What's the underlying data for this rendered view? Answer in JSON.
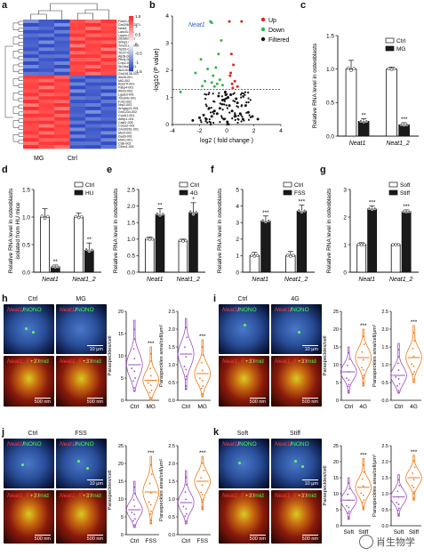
{
  "labels": {
    "a": "a",
    "b": "b",
    "c": "c",
    "d": "d",
    "e": "e",
    "f": "f",
    "g": "g",
    "h": "h",
    "i": "i",
    "j": "j",
    "k": "k"
  },
  "heatmap": {
    "colorbar_ticks": [
      "1.5",
      "1",
      "0.5",
      "0",
      "-0.5",
      "-1",
      "-1.5"
    ],
    "groups": [
      "MG",
      "Ctrl"
    ],
    "genes": [
      "Fukn1-005",
      "Gm20661-2271",
      "Neat1",
      "Lancl3-006",
      "Lrpprc-001",
      "Zfp36l2-001",
      "Snhg1-001",
      "Tmem194-002",
      "Trp53-006",
      "Ttc27-003",
      "Atp5j-006",
      "Ptms-001",
      "Crip2-001",
      "Slc16a3-001",
      "Ak3-001",
      "Gm16136-001",
      "Itm2b-001",
      "Mt2-002",
      "Rps27l-001",
      "Fabp4-001",
      "Ifitm3-003",
      "Lgals3-001",
      "Tmsb4x-001",
      "Fzd1-002",
      "Nrp2-003",
      "Arhgap21-001",
      "Gm1234-002",
      "Cox4i1-001",
      "Aebp1-001",
      "Cald1-005",
      "Col1a2-001",
      "Gm30261-001",
      "Mest-002",
      "Gas6-001",
      "Mdh1-001",
      "Ctsk-002",
      "Cthrc1-001"
    ]
  },
  "volcano": {
    "annotation": "Neat1",
    "legend": [
      "Up",
      "Down",
      "Filtered"
    ],
    "colors": {
      "up": "#e0251e",
      "down": "#2cb84a",
      "filtered": "#111111"
    }
  },
  "colors": {
    "ctrl_bar": "#ffffff",
    "treat_bar": "#1a1a1a",
    "violin_purple": "#9b4fc0",
    "violin_orange": "#f07a17"
  },
  "micrographs": {
    "h": {
      "left": "Ctrl",
      "right": "MG"
    },
    "i": {
      "left": "Ctrl",
      "right": "4G"
    },
    "j": {
      "left": "Ctrl",
      "right": "FSS"
    },
    "k": {
      "left": "Soft",
      "right": "Stiff"
    },
    "top_label_red": "Neat1",
    "top_label_green": "NONO",
    "bottom_label_red": "Neat1_5'",
    "bottom_label_yellow": "+3'",
    "bottom_label_green": "mid",
    "scale_top": "10 μm",
    "scale_bottom": "500 nm"
  },
  "watermark": "肖生物学",
  "chart_data": [
    {
      "panel": "a",
      "type": "heatmap",
      "x": [
        "MG",
        "MG",
        "MG",
        "Ctrl",
        "Ctrl",
        "Ctrl"
      ],
      "y_ticks": [
        "Fukn1-005",
        "Gm20661-2271",
        "Neat1",
        "Lancl3-006",
        "Lrpprc-001",
        "Zfp36l2-001",
        "Snhg1-001",
        "Tmem194-002",
        "Trp53-006",
        "Ttc27-003",
        "Atp5j-006",
        "Ptms-001",
        "Crip2-001",
        "Slc16a3-001",
        "Ak3-001",
        "Gm16136-001",
        "Itm2b-001",
        "Mt2-002",
        "Rps27l-001",
        "Fabp4-001",
        "Ifitm3-003",
        "Lgals3-001",
        "Tmsb4x-001",
        "Fzd1-002",
        "Nrp2-003",
        "Arhgap21-001",
        "Gm1234-002",
        "Cox4i1-001",
        "Aebp1-001",
        "Cald1-005",
        "Col1a2-001",
        "Gm30261-001",
        "Mest-002",
        "Gas6-001",
        "Mdh1-001",
        "Ctsk-002",
        "Cthrc1-001"
      ],
      "colorbar": [
        -1.5,
        1.5
      ]
    },
    {
      "panel": "b",
      "type": "scatter",
      "xlabel": "log2 ( fold change )",
      "ylabel": "-log10 (P value)",
      "xlim": [
        -4,
        4
      ],
      "ylim": [
        0,
        4
      ],
      "x_ticks": [
        -4,
        -2,
        0,
        2,
        4
      ],
      "y_ticks": [
        0,
        1,
        2,
        3,
        4
      ],
      "threshold_y": 1.3,
      "series": [
        {
          "name": "Up",
          "points": [
            [
              0.2,
              3.8
            ],
            [
              1.1,
              3.8
            ],
            [
              0.5,
              2.2
            ],
            [
              0.3,
              1.9
            ],
            [
              0.6,
              1.6
            ],
            [
              0.4,
              1.5
            ],
            [
              0.8,
              1.4
            ],
            [
              0.25,
              1.8
            ],
            [
              0.35,
              2.6
            ],
            [
              0.45,
              1.35
            ]
          ]
        },
        {
          "name": "Down",
          "points": [
            [
              -1.2,
              3.8
            ],
            [
              -1.1,
              3.75
            ],
            [
              -0.4,
              3.1
            ],
            [
              -1.9,
              2.4
            ],
            [
              -2.3,
              1.9
            ],
            [
              -1.4,
              2.05
            ],
            [
              -0.8,
              2.1
            ],
            [
              -1.0,
              1.8
            ],
            [
              -0.6,
              2.6
            ],
            [
              -0.7,
              1.5
            ],
            [
              -1.1,
              1.55
            ],
            [
              -0.5,
              1.65
            ],
            [
              -1.6,
              1.6
            ],
            [
              -0.9,
              1.4
            ],
            [
              -0.3,
              1.45
            ],
            [
              -1.8,
              1.42
            ],
            [
              -3.4,
              1.2
            ]
          ]
        },
        {
          "name": "Filtered",
          "points": [
            [
              -0.1,
              1.2
            ],
            [
              0.1,
              1.0
            ],
            [
              -0.3,
              0.9
            ],
            [
              0.2,
              0.7
            ],
            [
              -0.5,
              0.6
            ],
            [
              0.4,
              0.5
            ],
            [
              -0.7,
              0.4
            ],
            [
              0.6,
              0.3
            ],
            [
              -0.2,
              0.2
            ],
            [
              0.8,
              0.8
            ],
            [
              -0.9,
              0.5
            ],
            [
              1.0,
              0.4
            ],
            [
              -1.1,
              0.3
            ],
            [
              1.2,
              0.2
            ],
            [
              -1.3,
              0.6
            ],
            [
              1.4,
              0.7
            ],
            [
              -1.5,
              0.2
            ],
            [
              0.05,
              0.1
            ],
            [
              -0.05,
              1.1
            ],
            [
              0.3,
              1.1
            ],
            [
              -0.6,
              1.05
            ],
            [
              0.7,
              0.95
            ],
            [
              -1.7,
              0.35
            ],
            [
              1.6,
              0.45
            ],
            [
              -2.0,
              0.25
            ],
            [
              1.9,
              0.3
            ],
            [
              -2.5,
              0.15
            ],
            [
              2.3,
              0.2
            ]
          ]
        }
      ]
    },
    {
      "panel": "c",
      "type": "bar",
      "ylabel": "Relative RNA level in osteoblasts",
      "categories": [
        "Neat1",
        "Neat1_2"
      ],
      "series": [
        {
          "name": "Ctrl",
          "values": [
            1.0,
            1.0
          ]
        },
        {
          "name": "MG",
          "values": [
            0.22,
            0.17
          ]
        }
      ],
      "errors": [
        [
          0.13,
          0.03
        ],
        [
          0.04,
          0.03
        ]
      ],
      "significance": [
        "**",
        "***"
      ],
      "ylim": [
        0,
        1.5
      ],
      "y_ticks": [
        0.0,
        0.5,
        1.0,
        1.5
      ]
    },
    {
      "panel": "d",
      "type": "bar",
      "ylabel": "Relative RNA level in osteoblasts isolated from HU mice",
      "categories": [
        "Neat1",
        "Neat1_2"
      ],
      "series": [
        {
          "name": "Ctrl",
          "values": [
            1.0,
            1.0
          ]
        },
        {
          "name": "HU",
          "values": [
            0.1,
            0.4
          ]
        }
      ],
      "errors": [
        [
          0.15,
          0.07
        ],
        [
          0.03,
          0.13
        ]
      ],
      "significance": [
        "**",
        "**"
      ],
      "ylim": [
        0,
        1.5
      ],
      "y_ticks": [
        0.0,
        0.5,
        1.0,
        1.5
      ]
    },
    {
      "panel": "e",
      "type": "bar",
      "ylabel": "Relative RNA level in osteoblasts",
      "categories": [
        "Neat1",
        "Neat1_2"
      ],
      "series": [
        {
          "name": "Ctrl",
          "values": [
            1.0,
            0.95
          ]
        },
        {
          "name": "4G",
          "values": [
            1.75,
            1.8
          ]
        }
      ],
      "errors": [
        [
          0.06,
          0.05
        ],
        [
          0.17,
          0.3
        ]
      ],
      "significance": [
        "**",
        "*"
      ],
      "ylim": [
        0,
        2.5
      ],
      "y_ticks": [
        0.0,
        0.5,
        1.0,
        1.5,
        2.0,
        2.5
      ]
    },
    {
      "panel": "f",
      "type": "bar",
      "ylabel": "Relative RNA level in osteoblasts",
      "categories": [
        "Neat1",
        "Neat1_2"
      ],
      "series": [
        {
          "name": "Ctrl",
          "values": [
            1.0,
            1.0
          ]
        },
        {
          "name": "FSS",
          "values": [
            3.1,
            3.7
          ]
        }
      ],
      "errors": [
        [
          0.2,
          0.25
        ],
        [
          0.3,
          0.35
        ]
      ],
      "significance": [
        "***",
        "***"
      ],
      "ylim": [
        0,
        5
      ],
      "y_ticks": [
        0,
        1,
        2,
        3,
        4,
        5
      ]
    },
    {
      "panel": "g",
      "type": "bar",
      "ylabel": "Relative RNA level in osteoblasts",
      "categories": [
        "Neat1",
        "Neat1_2"
      ],
      "series": [
        {
          "name": "Soft",
          "values": [
            1.0,
            1.0
          ]
        },
        {
          "name": "Stiff",
          "values": [
            2.3,
            2.2
          ]
        }
      ],
      "errors": [
        [
          0.07,
          0.02
        ],
        [
          0.1,
          0.06
        ]
      ],
      "significance": [
        "***",
        "***"
      ],
      "ylim": [
        0,
        3
      ],
      "y_ticks": [
        0,
        1,
        2,
        3
      ]
    },
    {
      "panel": "h1",
      "type": "violin",
      "ylabel": "Paraspeckles/cell",
      "categories": [
        "Ctrl",
        "MG"
      ],
      "medians": [
        8,
        4.5
      ],
      "ranges": [
        [
          2,
          18
        ],
        [
          0,
          12
        ]
      ],
      "ylim": [
        0,
        20
      ],
      "y_ticks": [
        0,
        5,
        10,
        15,
        20
      ],
      "significance": "***"
    },
    {
      "panel": "h2",
      "type": "violin",
      "ylabel": "Paraspeckles area/cell/μm²",
      "categories": [
        "Ctrl",
        "MG"
      ],
      "medians": [
        1.3,
        0.75
      ],
      "ranges": [
        [
          0.3,
          2.3
        ],
        [
          0.1,
          1.7
        ]
      ],
      "ylim": [
        0,
        2.5
      ],
      "y_ticks": [
        0.0,
        0.5,
        1.0,
        1.5,
        2.0,
        2.5
      ],
      "significance": "***"
    },
    {
      "panel": "i1",
      "type": "violin",
      "ylabel": "Paraspeckles/cell",
      "categories": [
        "Ctrl",
        "4G"
      ],
      "medians": [
        8,
        12
      ],
      "ranges": [
        [
          2,
          15
        ],
        [
          4,
          20
        ]
      ],
      "ylim": [
        0,
        25
      ],
      "y_ticks": [
        0,
        5,
        10,
        15,
        20,
        25
      ],
      "significance": "***"
    },
    {
      "panel": "i2",
      "type": "violin",
      "ylabel": "Paraspeckles area/cell/μm²",
      "categories": [
        "Ctrl",
        "4G"
      ],
      "medians": [
        0.7,
        1.2
      ],
      "ranges": [
        [
          0.2,
          1.6
        ],
        [
          0.5,
          2.1
        ]
      ],
      "ylim": [
        0,
        2.5
      ],
      "y_ticks": [
        0.0,
        0.5,
        1.0,
        1.5,
        2.0,
        2.5
      ],
      "significance": "***"
    },
    {
      "panel": "j1",
      "type": "violin",
      "ylabel": "Paraspeckles/cell",
      "categories": [
        "Ctrl",
        "FSS"
      ],
      "medians": [
        7,
        12
      ],
      "ranges": [
        [
          2,
          15
        ],
        [
          3,
          22
        ]
      ],
      "ylim": [
        0,
        25
      ],
      "y_ticks": [
        0,
        5,
        10,
        15,
        20,
        25
      ],
      "significance": "***"
    },
    {
      "panel": "j2",
      "type": "violin",
      "ylabel": "Paraspeckles area/cell/μm²",
      "categories": [
        "Ctrl",
        "FSS"
      ],
      "medians": [
        0.9,
        1.5
      ],
      "ranges": [
        [
          0.3,
          1.8
        ],
        [
          0.7,
          2.2
        ]
      ],
      "ylim": [
        0,
        2.5
      ],
      "y_ticks": [
        0.0,
        0.5,
        1.0,
        1.5,
        2.0,
        2.5
      ],
      "significance": "***"
    },
    {
      "panel": "k1",
      "type": "violin",
      "ylabel": "Paraspeckles/cell",
      "categories": [
        "Soft",
        "Stiff"
      ],
      "medians": [
        8,
        12
      ],
      "ranges": [
        [
          2,
          15
        ],
        [
          5,
          21
        ]
      ],
      "ylim": [
        0,
        25
      ],
      "y_ticks": [
        0,
        5,
        10,
        15,
        20,
        25
      ],
      "significance": "***"
    },
    {
      "panel": "k2",
      "type": "violin",
      "ylabel": "Paraspeckles area/cell/μm²",
      "categories": [
        "Soft",
        "Stiff"
      ],
      "medians": [
        0.9,
        1.5
      ],
      "ranges": [
        [
          0.3,
          1.6
        ],
        [
          0.8,
          2.2
        ]
      ],
      "ylim": [
        0,
        2.5
      ],
      "y_ticks": [
        0.0,
        0.5,
        1.0,
        1.5,
        2.0,
        2.5
      ],
      "significance": "***"
    }
  ]
}
